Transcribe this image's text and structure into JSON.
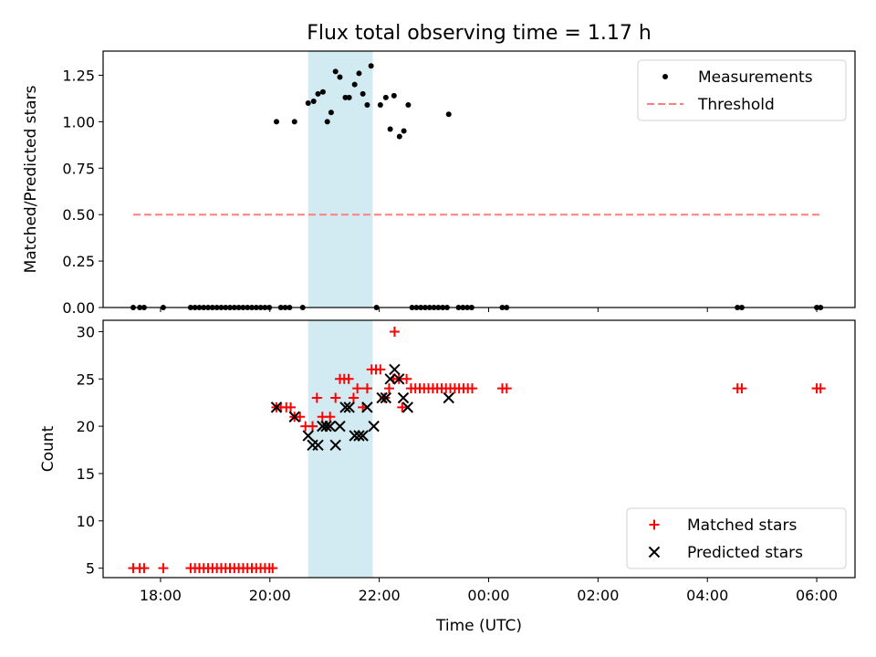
{
  "chart_data": {
    "title": "Flux total observing time = 1.17 h",
    "xlabel": "Time (UTC)",
    "x_unit": "hours (UTC, continuing past midnight)",
    "xlim": [
      16.95,
      30.7
    ],
    "x_ticks": [
      {
        "label": "18:00",
        "value": 18
      },
      {
        "label": "20:00",
        "value": 20
      },
      {
        "label": "22:00",
        "value": 22
      },
      {
        "label": "00:00",
        "value": 24
      },
      {
        "label": "02:00",
        "value": 26
      },
      {
        "label": "04:00",
        "value": 28
      },
      {
        "label": "06:00",
        "value": 30
      }
    ],
    "highlight_span": [
      20.7,
      21.88
    ],
    "highlight_color": "#add8e6",
    "panels": [
      {
        "type": "scatter",
        "ylabel": "Matched/Predicted stars",
        "ylim": [
          0,
          1.38
        ],
        "y_ticks": [
          "0.00",
          "0.25",
          "0.50",
          "0.75",
          "1.00",
          "1.25"
        ],
        "legend_position": "upper right",
        "series": [
          {
            "name": "Measurements",
            "marker": "dot",
            "color": "#000000",
            "points": [
              [
                17.5,
                0
              ],
              [
                17.62,
                0
              ],
              [
                17.7,
                0
              ],
              [
                18.05,
                0
              ],
              [
                18.55,
                0
              ],
              [
                18.63,
                0
              ],
              [
                18.71,
                0
              ],
              [
                18.79,
                0
              ],
              [
                18.87,
                0
              ],
              [
                18.95,
                0
              ],
              [
                19.03,
                0
              ],
              [
                19.11,
                0
              ],
              [
                19.19,
                0
              ],
              [
                19.27,
                0
              ],
              [
                19.35,
                0
              ],
              [
                19.43,
                0
              ],
              [
                19.51,
                0
              ],
              [
                19.59,
                0
              ],
              [
                19.67,
                0
              ],
              [
                19.75,
                0
              ],
              [
                19.83,
                0
              ],
              [
                19.91,
                0
              ],
              [
                19.99,
                0
              ],
              [
                20.2,
                0
              ],
              [
                20.28,
                0
              ],
              [
                20.36,
                0
              ],
              [
                20.6,
                0
              ],
              [
                21.95,
                0
              ],
              [
                22.6,
                0
              ],
              [
                22.68,
                0
              ],
              [
                22.76,
                0
              ],
              [
                22.84,
                0
              ],
              [
                22.92,
                0
              ],
              [
                23.0,
                0
              ],
              [
                23.08,
                0
              ],
              [
                23.16,
                0
              ],
              [
                23.24,
                0
              ],
              [
                23.45,
                0
              ],
              [
                23.53,
                0
              ],
              [
                23.61,
                0
              ],
              [
                23.69,
                0
              ],
              [
                24.25,
                0
              ],
              [
                24.33,
                0
              ],
              [
                28.55,
                0
              ],
              [
                28.63,
                0
              ],
              [
                30.0,
                0
              ],
              [
                30.07,
                0
              ],
              [
                20.12,
                1.0
              ],
              [
                20.45,
                1.0
              ],
              [
                20.7,
                1.1
              ],
              [
                20.8,
                1.11
              ],
              [
                20.88,
                1.15
              ],
              [
                20.97,
                1.16
              ],
              [
                21.05,
                1.0
              ],
              [
                21.12,
                1.05
              ],
              [
                21.2,
                1.27
              ],
              [
                21.28,
                1.24
              ],
              [
                21.38,
                1.13
              ],
              [
                21.45,
                1.13
              ],
              [
                21.55,
                1.2
              ],
              [
                21.63,
                1.26
              ],
              [
                21.7,
                1.15
              ],
              [
                21.78,
                1.09
              ],
              [
                21.85,
                1.3
              ],
              [
                22.02,
                1.09
              ],
              [
                22.12,
                1.13
              ],
              [
                22.2,
                0.96
              ],
              [
                22.27,
                1.14
              ],
              [
                22.37,
                0.92
              ],
              [
                22.45,
                0.95
              ],
              [
                22.53,
                1.09
              ],
              [
                23.27,
                1.04
              ]
            ]
          },
          {
            "name": "Threshold",
            "marker": "dashed-line",
            "color": "#ff7f7f",
            "points": [
              [
                17.5,
                0.5
              ],
              [
                30.07,
                0.5
              ]
            ]
          }
        ]
      },
      {
        "type": "scatter",
        "ylabel": "Count",
        "ylim": [
          4,
          31.2
        ],
        "y_ticks": [
          "5",
          "10",
          "15",
          "20",
          "25",
          "30"
        ],
        "legend_position": "lower right",
        "series": [
          {
            "name": "Matched stars",
            "marker": "plus",
            "color": "#ff0000",
            "points": [
              [
                17.5,
                5
              ],
              [
                17.62,
                5
              ],
              [
                17.7,
                5
              ],
              [
                18.05,
                5
              ],
              [
                18.55,
                5
              ],
              [
                18.63,
                5
              ],
              [
                18.71,
                5
              ],
              [
                18.79,
                5
              ],
              [
                18.87,
                5
              ],
              [
                18.95,
                5
              ],
              [
                19.03,
                5
              ],
              [
                19.11,
                5
              ],
              [
                19.19,
                5
              ],
              [
                19.27,
                5
              ],
              [
                19.35,
                5
              ],
              [
                19.43,
                5
              ],
              [
                19.51,
                5
              ],
              [
                19.59,
                5
              ],
              [
                19.67,
                5
              ],
              [
                19.75,
                5
              ],
              [
                19.83,
                5
              ],
              [
                19.91,
                5
              ],
              [
                19.99,
                5
              ],
              [
                20.05,
                5
              ],
              [
                20.12,
                22
              ],
              [
                20.2,
                22
              ],
              [
                20.3,
                22
              ],
              [
                20.38,
                22
              ],
              [
                20.45,
                21
              ],
              [
                20.55,
                21
              ],
              [
                20.65,
                20
              ],
              [
                20.78,
                20
              ],
              [
                20.86,
                23
              ],
              [
                20.96,
                21
              ],
              [
                21.03,
                20
              ],
              [
                21.1,
                21
              ],
              [
                21.2,
                23
              ],
              [
                21.28,
                25
              ],
              [
                21.36,
                25
              ],
              [
                21.44,
                25
              ],
              [
                21.53,
                23
              ],
              [
                21.6,
                24
              ],
              [
                21.7,
                22
              ],
              [
                21.78,
                24
              ],
              [
                21.86,
                26
              ],
              [
                21.94,
                26
              ],
              [
                22.02,
                26
              ],
              [
                22.1,
                23
              ],
              [
                22.18,
                24
              ],
              [
                22.26,
                25
              ],
              [
                22.28,
                30
              ],
              [
                22.36,
                25
              ],
              [
                22.42,
                22
              ],
              [
                22.5,
                25
              ],
              [
                22.58,
                24
              ],
              [
                22.66,
                24
              ],
              [
                22.74,
                24
              ],
              [
                22.82,
                24
              ],
              [
                22.9,
                24
              ],
              [
                22.98,
                24
              ],
              [
                23.06,
                24
              ],
              [
                23.14,
                24
              ],
              [
                23.22,
                24
              ],
              [
                23.3,
                24
              ],
              [
                23.38,
                24
              ],
              [
                23.46,
                24
              ],
              [
                23.54,
                24
              ],
              [
                23.62,
                24
              ],
              [
                23.7,
                24
              ],
              [
                24.25,
                24
              ],
              [
                24.33,
                24
              ],
              [
                28.55,
                24
              ],
              [
                28.63,
                24
              ],
              [
                30.0,
                24
              ],
              [
                30.07,
                24
              ]
            ]
          },
          {
            "name": "Predicted stars",
            "marker": "x",
            "color": "#000000",
            "points": [
              [
                20.12,
                22
              ],
              [
                20.45,
                21
              ],
              [
                20.7,
                19
              ],
              [
                20.78,
                18
              ],
              [
                20.88,
                18
              ],
              [
                20.96,
                20
              ],
              [
                21.03,
                20
              ],
              [
                21.1,
                20
              ],
              [
                21.2,
                18
              ],
              [
                21.28,
                20
              ],
              [
                21.38,
                22
              ],
              [
                21.45,
                22
              ],
              [
                21.55,
                19
              ],
              [
                21.63,
                19
              ],
              [
                21.7,
                19
              ],
              [
                21.78,
                22
              ],
              [
                21.9,
                20
              ],
              [
                22.05,
                23
              ],
              [
                22.12,
                23
              ],
              [
                22.2,
                25
              ],
              [
                22.28,
                26
              ],
              [
                22.36,
                25
              ],
              [
                22.44,
                23
              ],
              [
                22.52,
                22
              ],
              [
                23.27,
                23
              ]
            ]
          }
        ]
      }
    ]
  }
}
